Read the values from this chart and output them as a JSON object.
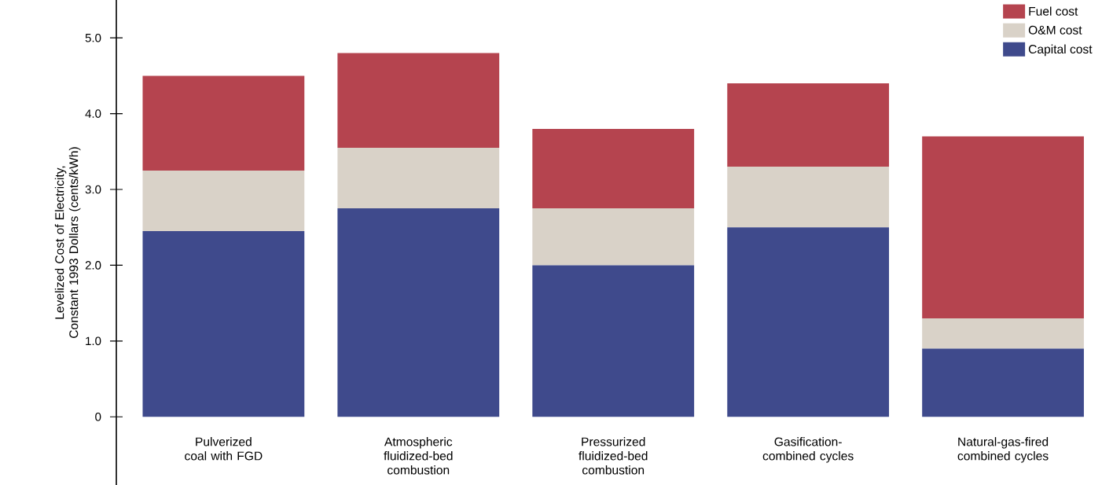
{
  "chart_data": {
    "type": "bar",
    "stacked": true,
    "ylabel": "Levelized Cost of Electricity, Constant 1993 Dollars (cents/kWh)",
    "categories": [
      "Pulverized coal with FGD",
      "Atmospheric fluidized-bed combustion",
      "Pressurized fluidized-bed combustion",
      "Gasification-combined cycles",
      "Natural-gas-fired combined cycles"
    ],
    "series": [
      {
        "name": "Capital cost",
        "color": "#3f4a8c",
        "values": [
          2.45,
          2.75,
          2.0,
          2.5,
          0.9
        ]
      },
      {
        "name": "O&M cost",
        "color": "#d9d2c8",
        "values": [
          0.8,
          0.8,
          0.75,
          0.8,
          0.4
        ]
      },
      {
        "name": "Fuel cost",
        "color": "#b5444f",
        "values": [
          1.25,
          1.25,
          1.05,
          1.1,
          2.4
        ]
      }
    ],
    "ylim": [
      -0.9,
      5.5
    ],
    "yticks": [
      0,
      {
        "value": 1,
        "label": "1.0"
      },
      {
        "value": 2,
        "label": "2.0"
      },
      {
        "value": 3,
        "label": "3.0"
      },
      {
        "value": 4,
        "label": "4.0"
      },
      {
        "value": 5,
        "label": "5.0"
      }
    ],
    "legend": "top right"
  }
}
